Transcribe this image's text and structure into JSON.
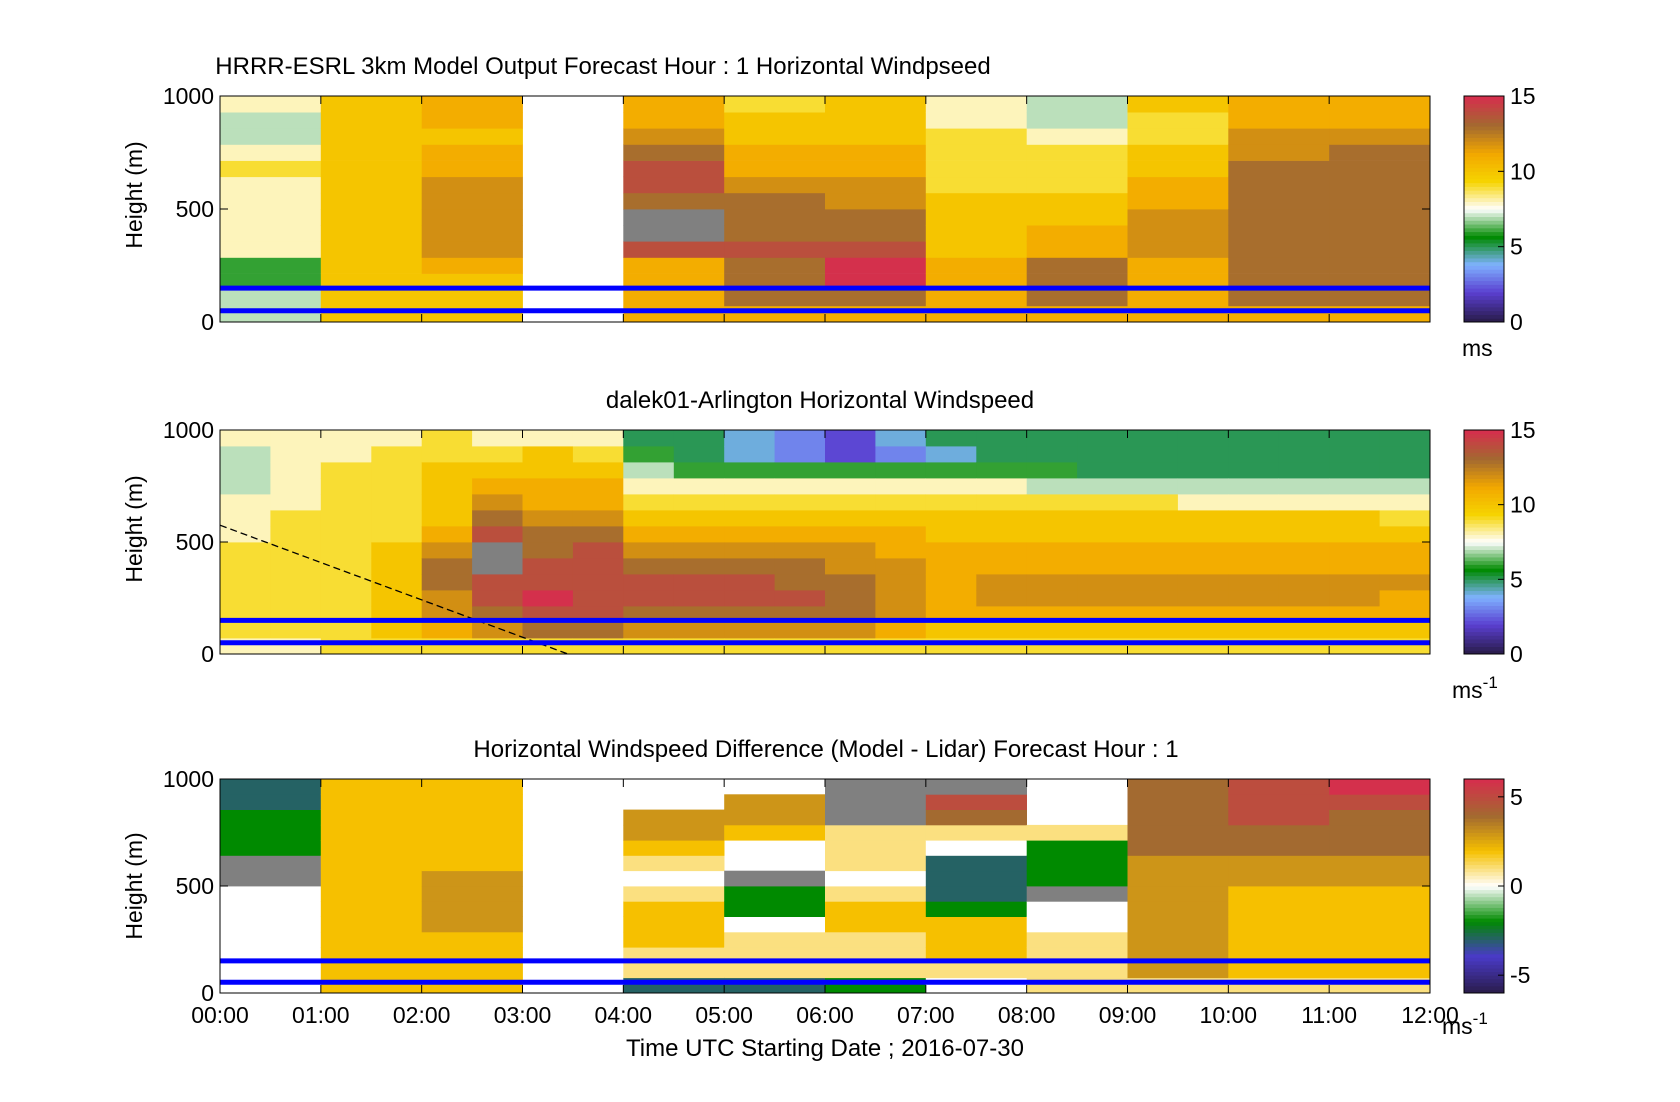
{
  "colors": {
    "speed_scale": [
      "#2b1d4f",
      "#5a3fd0",
      "#7fb2ff",
      "#008a00",
      "#ffffff",
      "#f6d400",
      "#f2a700",
      "#a36a30",
      "#d4304c"
    ],
    "diff_scale": [
      "#2b1d4f",
      "#4a3ac8",
      "#008a00",
      "#ffffff",
      "#f6c000",
      "#a36a30",
      "#d4304c"
    ],
    "height_lines": "#0000ff",
    "missing": "#808080"
  },
  "chart_data": [
    {
      "type": "heatmap",
      "title": "HRRR-ESRL 3km Model Output   Forecast Hour : 1 Horizontal Windpseed",
      "xlabel": "",
      "ylabel": "Height (m)",
      "xlim": [
        0,
        12
      ],
      "ylim": [
        0,
        1000
      ],
      "xticks": [],
      "yticks": [
        {
          "v": 0,
          "label": "0"
        },
        {
          "v": 500,
          "label": "500"
        },
        {
          "v": 1000,
          "label": "1000"
        }
      ],
      "colorbar": {
        "min": 0,
        "max": 15,
        "ticks": [
          {
            "v": 0,
            "label": "0"
          },
          {
            "v": 5,
            "label": "5"
          },
          {
            "v": 10,
            "label": "10"
          },
          {
            "v": 15,
            "label": "15"
          }
        ],
        "unit": "ms",
        "unit_sup": ""
      },
      "scale": "speed",
      "reference_heights": [
        150,
        50
      ],
      "profiles": [
        [
          7,
          7,
          6,
          6,
          8,
          8,
          8,
          8,
          8,
          9,
          8,
          7,
          7,
          8
        ],
        [
          10,
          10,
          10,
          10,
          10,
          10,
          10,
          10,
          10,
          10,
          10,
          10,
          10,
          10
        ],
        [
          10,
          10,
          10,
          11,
          12,
          12,
          12,
          12,
          12,
          11,
          11,
          10,
          11,
          11
        ],
        null,
        [
          11,
          11,
          11,
          11,
          14,
          -1,
          -1,
          13,
          14,
          14,
          13,
          12,
          11,
          11
        ],
        [
          11,
          13,
          13,
          13,
          14,
          13,
          13,
          13,
          12,
          11,
          11,
          10,
          10,
          9
        ],
        [
          11,
          13,
          15,
          15,
          14,
          13,
          13,
          12,
          12,
          11,
          11,
          10,
          10,
          10
        ],
        [
          11,
          11,
          11,
          11,
          10,
          10,
          10,
          10,
          9,
          9,
          9,
          9,
          8,
          8
        ],
        [
          11,
          13,
          13,
          13,
          11,
          11,
          10,
          10,
          9,
          9,
          9,
          8,
          7,
          7
        ],
        [
          11,
          11,
          11,
          11,
          12,
          12,
          12,
          11,
          11,
          10,
          10,
          9,
          9,
          10
        ],
        [
          11,
          13,
          13,
          13,
          13,
          13,
          13,
          13,
          13,
          13,
          12,
          12,
          11,
          11
        ],
        [
          11,
          13,
          13,
          13,
          13,
          13,
          13,
          13,
          13,
          13,
          13,
          12,
          11,
          11
        ]
      ]
    },
    {
      "type": "heatmap",
      "title": "dalek01-Arlington  Horizontal Windspeed",
      "xlabel": "",
      "ylabel": "Height (m)",
      "xlim": [
        0,
        12
      ],
      "ylim": [
        0,
        1000
      ],
      "xticks": [],
      "yticks": [
        {
          "v": 0,
          "label": "0"
        },
        {
          "v": 500,
          "label": "500"
        },
        {
          "v": 1000,
          "label": "1000"
        }
      ],
      "colorbar": {
        "min": 0,
        "max": 15,
        "ticks": [
          {
            "v": 0,
            "label": "0"
          },
          {
            "v": 5,
            "label": "5"
          },
          {
            "v": 10,
            "label": "10"
          },
          {
            "v": 15,
            "label": "15"
          }
        ],
        "unit": "ms",
        "unit_sup": "-1"
      },
      "scale": "speed",
      "reference_heights": [
        150,
        50
      ],
      "boundary_layer_line": {
        "x": [
          0,
          3.45
        ],
        "y": [
          575,
          0
        ]
      },
      "profiles": [
        [
          8,
          9,
          9,
          9,
          9,
          9,
          9,
          8,
          8,
          8,
          7,
          7,
          7,
          8
        ],
        [
          8,
          9,
          9,
          9,
          9,
          9,
          9,
          9,
          9,
          8,
          8,
          8,
          8,
          8
        ],
        [
          9,
          9,
          9,
          9,
          9,
          9,
          9,
          9,
          9,
          9,
          9,
          9,
          8,
          8
        ],
        [
          9,
          10,
          10,
          10,
          10,
          10,
          10,
          9,
          9,
          9,
          9,
          9,
          9,
          8
        ],
        [
          9,
          11,
          12,
          12,
          13,
          13,
          12,
          11,
          10,
          10,
          10,
          10,
          9,
          9
        ],
        [
          9,
          12,
          13,
          14,
          14,
          -1,
          -1,
          14,
          13,
          12,
          11,
          10,
          9,
          8
        ],
        [
          9,
          13,
          14,
          15,
          14,
          14,
          13,
          13,
          12,
          11,
          11,
          10,
          10,
          8
        ],
        [
          9,
          13,
          14,
          14,
          14,
          14,
          14,
          13,
          12,
          11,
          11,
          10,
          9,
          8
        ],
        [
          9,
          12,
          13,
          14,
          14,
          13,
          12,
          11,
          10,
          9,
          8,
          7,
          6,
          5
        ],
        [
          9,
          12,
          13,
          14,
          14,
          13,
          12,
          11,
          10,
          9,
          8,
          6,
          5,
          5
        ],
        [
          9,
          12,
          13,
          14,
          14,
          13,
          12,
          11,
          10,
          9,
          8,
          6,
          4,
          4
        ],
        [
          9,
          12,
          13,
          14,
          13,
          13,
          12,
          11,
          10,
          9,
          8,
          6,
          3,
          3
        ],
        [
          9,
          12,
          13,
          13,
          13,
          12,
          12,
          11,
          10,
          9,
          8,
          6,
          2,
          2
        ],
        [
          9,
          11,
          12,
          12,
          12,
          12,
          11,
          11,
          10,
          9,
          8,
          6,
          3,
          4
        ],
        [
          9,
          10,
          11,
          11,
          11,
          11,
          11,
          10,
          10,
          9,
          8,
          6,
          4,
          5
        ],
        [
          9,
          10,
          11,
          12,
          12,
          11,
          11,
          10,
          10,
          9,
          8,
          6,
          5,
          5
        ],
        [
          9,
          10,
          11,
          12,
          12,
          11,
          11,
          10,
          10,
          9,
          7,
          6,
          5,
          5
        ],
        [
          9,
          10,
          11,
          12,
          12,
          11,
          11,
          10,
          10,
          9,
          7,
          5,
          5,
          5
        ],
        [
          9,
          10,
          11,
          12,
          12,
          11,
          11,
          10,
          10,
          9,
          7,
          5,
          5,
          5
        ],
        [
          9,
          10,
          11,
          12,
          12,
          11,
          11,
          10,
          10,
          8,
          7,
          5,
          5,
          5
        ],
        [
          9,
          10,
          11,
          12,
          12,
          11,
          11,
          10,
          10,
          8,
          7,
          5,
          5,
          5
        ],
        [
          9,
          10,
          11,
          12,
          12,
          11,
          11,
          10,
          10,
          8,
          7,
          5,
          5,
          5
        ],
        [
          9,
          10,
          11,
          12,
          12,
          11,
          11,
          10,
          10,
          8,
          7,
          5,
          5,
          5
        ],
        [
          9,
          10,
          11,
          11,
          12,
          11,
          11,
          10,
          9,
          8,
          7,
          5,
          5,
          5
        ]
      ]
    },
    {
      "type": "heatmap",
      "title": "Horizontal Windspeed Difference (Model - Lidar) Forecast Hour : 1",
      "xlabel": "Time UTC  Starting Date ; 2016-07-30",
      "ylabel": "Height (m)",
      "xlim": [
        0,
        12
      ],
      "ylim": [
        0,
        1000
      ],
      "xticks": [
        {
          "v": 0,
          "label": "00:00"
        },
        {
          "v": 1,
          "label": "01:00"
        },
        {
          "v": 2,
          "label": "02:00"
        },
        {
          "v": 3,
          "label": "03:00"
        },
        {
          "v": 4,
          "label": "04:00"
        },
        {
          "v": 5,
          "label": "05:00"
        },
        {
          "v": 6,
          "label": "06:00"
        },
        {
          "v": 7,
          "label": "07:00"
        },
        {
          "v": 8,
          "label": "08:00"
        },
        {
          "v": 9,
          "label": "09:00"
        },
        {
          "v": 10,
          "label": "10:00"
        },
        {
          "v": 11,
          "label": "11:00"
        },
        {
          "v": 12,
          "label": "12:00"
        }
      ],
      "yticks": [
        {
          "v": 0,
          "label": "0"
        },
        {
          "v": 500,
          "label": "500"
        },
        {
          "v": 1000,
          "label": "1000"
        }
      ],
      "colorbar": {
        "min": -6,
        "max": 6,
        "ticks": [
          {
            "v": -5,
            "label": "-5"
          },
          {
            "v": 0,
            "label": "0"
          },
          {
            "v": 5,
            "label": "5"
          }
        ],
        "unit": "ms",
        "unit_sup": "-1"
      },
      "scale": "diff",
      "reference_heights": [
        150,
        50
      ],
      "profiles": [
        [
          0,
          0,
          0,
          0,
          0,
          0,
          0,
          -1,
          -1,
          -2,
          -2,
          -2,
          -3,
          -3
        ],
        [
          2,
          2,
          2,
          2,
          2,
          2,
          2,
          2,
          2,
          2,
          2,
          2,
          2,
          2
        ],
        [
          2,
          2,
          2,
          2,
          3,
          3,
          3,
          3,
          2,
          2,
          2,
          2,
          2,
          2
        ],
        null,
        [
          -3,
          1,
          1,
          2,
          2,
          2,
          1,
          0,
          1,
          2,
          3,
          3,
          null,
          null
        ],
        [
          -3,
          1,
          1,
          1,
          0,
          -2,
          -2,
          -1,
          null,
          null,
          2,
          3,
          3,
          null
        ],
        [
          -2,
          1,
          1,
          1,
          2,
          2,
          1,
          0,
          1,
          1,
          1,
          -99,
          -99,
          -99
        ],
        [
          0,
          1,
          2,
          2,
          2,
          -2,
          -3,
          -3,
          -3,
          0,
          1,
          4,
          5,
          -99
        ],
        [
          1,
          1,
          1,
          1,
          0,
          0,
          -1,
          -2,
          -2,
          -2,
          1,
          null,
          null,
          null
        ],
        [
          1,
          3,
          3,
          3,
          3,
          3,
          3,
          3,
          3,
          4,
          4,
          4,
          4,
          4
        ],
        [
          1,
          2,
          2,
          2,
          2,
          2,
          2,
          3,
          3,
          4,
          4,
          5,
          5,
          5
        ],
        [
          1,
          2,
          2,
          2,
          2,
          2,
          2,
          3,
          3,
          4,
          4,
          4,
          5,
          6
        ]
      ]
    }
  ]
}
